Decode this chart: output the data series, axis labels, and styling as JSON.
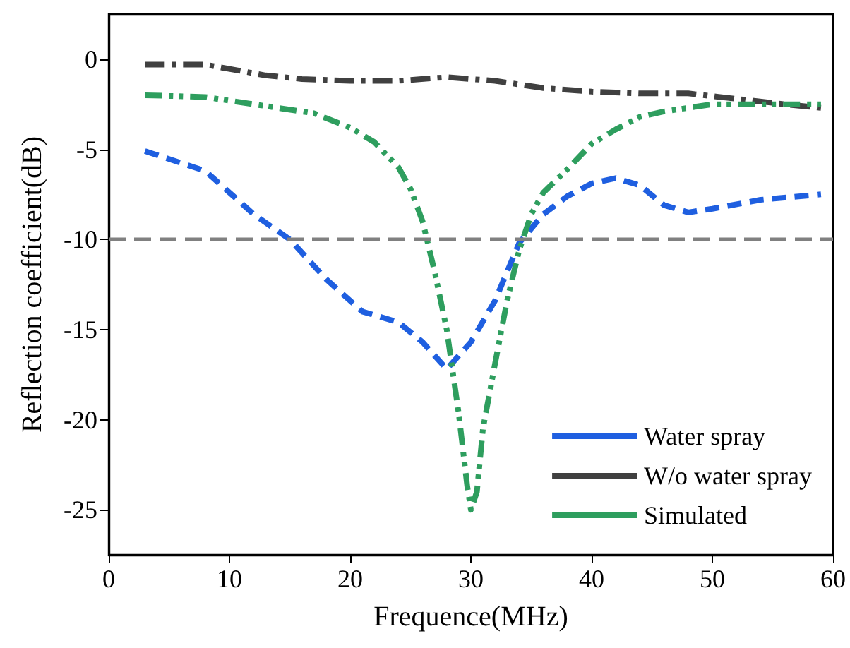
{
  "chart_data": {
    "type": "line",
    "xlabel": "Frequence(MHz)",
    "ylabel": "Reflection coefficient(dB)",
    "xlim": [
      0,
      60
    ],
    "xticks": [
      0,
      10,
      20,
      30,
      40,
      50,
      60
    ],
    "ylim": [
      -27.5,
      2.5
    ],
    "yticks": [
      -25,
      -20,
      -15,
      -10,
      -5,
      0
    ],
    "grid": false,
    "legend": "bottom right",
    "marker": "none",
    "ref_lines": [
      {
        "axis": "y",
        "value": -10,
        "color": "#808080",
        "line_style": "dashed"
      }
    ],
    "series": [
      {
        "name": "Water spray",
        "color": "#1f5fe0",
        "line_style": "dashed",
        "x": [
          3,
          8,
          12,
          15,
          18,
          21,
          24,
          26,
          28,
          30,
          32,
          34,
          36,
          38,
          40,
          42,
          44,
          46,
          48,
          50,
          54,
          59
        ],
        "values": [
          -5.1,
          -6.2,
          -8.6,
          -10,
          -12.2,
          -14,
          -14.6,
          -15.7,
          -17.2,
          -15.7,
          -13.4,
          -10.2,
          -8.6,
          -7.6,
          -6.9,
          -6.6,
          -7,
          -8.1,
          -8.5,
          -8.3,
          -7.8,
          -7.5
        ]
      },
      {
        "name": "W/o water spray",
        "color": "#404040",
        "line_style": "dashed",
        "x": [
          3,
          8,
          13,
          16,
          20,
          24,
          28,
          32,
          36,
          40,
          44,
          48,
          52,
          56,
          59
        ],
        "values": [
          -0.3,
          -0.3,
          -0.9,
          -1.1,
          -1.2,
          -1.2,
          -1,
          -1.2,
          -1.6,
          -1.8,
          -1.9,
          -1.9,
          -2.2,
          -2.5,
          -2.7
        ]
      },
      {
        "name": "Simulated",
        "color": "#2e9e5e",
        "line_style": "dashed",
        "x": [
          3,
          8,
          13,
          17,
          20,
          22,
          24,
          25,
          26,
          27,
          28,
          29,
          29.7,
          30,
          30.5,
          31,
          32,
          33,
          34,
          35,
          36,
          38,
          40,
          42,
          44,
          46,
          50,
          55,
          59
        ],
        "values": [
          -2,
          -2.1,
          -2.6,
          -3,
          -3.8,
          -4.6,
          -6,
          -7.2,
          -9,
          -11.8,
          -15,
          -19.7,
          -23.7,
          -25,
          -24,
          -20.5,
          -16.9,
          -13.4,
          -10.6,
          -8.6,
          -7.4,
          -6.1,
          -4.7,
          -3.9,
          -3.2,
          -2.9,
          -2.5,
          -2.5,
          -2.5
        ]
      }
    ]
  }
}
